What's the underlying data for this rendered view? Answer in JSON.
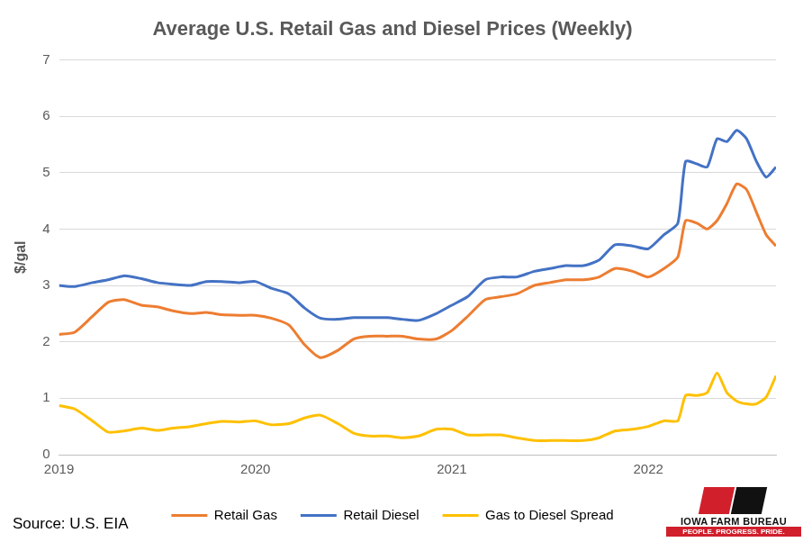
{
  "chart_data": {
    "type": "line",
    "title": "Average U.S. Retail Gas and Diesel Prices (Weekly)",
    "y_label": "$/gal",
    "x": [
      2019.0,
      2019.08,
      2019.17,
      2019.25,
      2019.33,
      2019.42,
      2019.5,
      2019.58,
      2019.67,
      2019.75,
      2019.83,
      2019.92,
      2020.0,
      2020.08,
      2020.17,
      2020.25,
      2020.33,
      2020.42,
      2020.5,
      2020.58,
      2020.67,
      2020.75,
      2020.83,
      2020.92,
      2021.0,
      2021.08,
      2021.17,
      2021.25,
      2021.33,
      2021.42,
      2021.5,
      2021.58,
      2021.67,
      2021.75,
      2021.83,
      2021.92,
      2022.0,
      2022.08,
      2022.15,
      2022.19,
      2022.25,
      2022.3,
      2022.35,
      2022.4,
      2022.45,
      2022.5,
      2022.55,
      2022.6,
      2022.65
    ],
    "series": [
      {
        "name": "Retail Gas",
        "color": "#ED7D31",
        "values": [
          2.13,
          2.17,
          2.45,
          2.7,
          2.75,
          2.65,
          2.62,
          2.55,
          2.5,
          2.52,
          2.48,
          2.47,
          2.47,
          2.42,
          2.3,
          1.95,
          1.72,
          1.85,
          2.05,
          2.1,
          2.1,
          2.1,
          2.05,
          2.05,
          2.2,
          2.45,
          2.75,
          2.8,
          2.85,
          3.0,
          3.05,
          3.1,
          3.1,
          3.15,
          3.3,
          3.25,
          3.15,
          3.3,
          3.5,
          4.15,
          4.1,
          4.0,
          4.15,
          4.45,
          4.8,
          4.7,
          4.3,
          3.9,
          3.7
        ]
      },
      {
        "name": "Retail Diesel",
        "color": "#4472C4",
        "values": [
          3.0,
          2.98,
          3.05,
          3.1,
          3.17,
          3.12,
          3.05,
          3.02,
          3.0,
          3.07,
          3.07,
          3.05,
          3.07,
          2.95,
          2.85,
          2.6,
          2.42,
          2.4,
          2.43,
          2.43,
          2.43,
          2.4,
          2.38,
          2.5,
          2.65,
          2.8,
          3.1,
          3.15,
          3.15,
          3.25,
          3.3,
          3.35,
          3.35,
          3.45,
          3.72,
          3.7,
          3.65,
          3.9,
          4.1,
          5.2,
          5.15,
          5.1,
          5.6,
          5.55,
          5.75,
          5.6,
          5.2,
          4.92,
          5.1
        ]
      },
      {
        "name": "Gas to Diesel Spread",
        "color": "#FFC000",
        "values": [
          0.87,
          0.81,
          0.6,
          0.4,
          0.42,
          0.47,
          0.43,
          0.47,
          0.5,
          0.55,
          0.59,
          0.58,
          0.6,
          0.53,
          0.55,
          0.65,
          0.7,
          0.55,
          0.38,
          0.33,
          0.33,
          0.3,
          0.33,
          0.45,
          0.45,
          0.35,
          0.35,
          0.35,
          0.3,
          0.25,
          0.25,
          0.25,
          0.25,
          0.3,
          0.42,
          0.45,
          0.5,
          0.6,
          0.6,
          1.05,
          1.05,
          1.1,
          1.45,
          1.1,
          0.95,
          0.9,
          0.9,
          1.02,
          1.4
        ]
      }
    ],
    "xlim": [
      2019,
      2022.65
    ],
    "xticks": [
      2019,
      2020,
      2021,
      2022
    ],
    "ylim": [
      0,
      7
    ],
    "yticks": [
      0,
      1,
      2,
      3,
      4,
      5,
      6,
      7
    ],
    "grid": true,
    "legend": "bottom"
  },
  "source": "Source: U.S. EIA",
  "logo": {
    "name": "IOWA FARM BUREAU",
    "slogan": "PEOPLE. PROGRESS. PRIDE."
  }
}
